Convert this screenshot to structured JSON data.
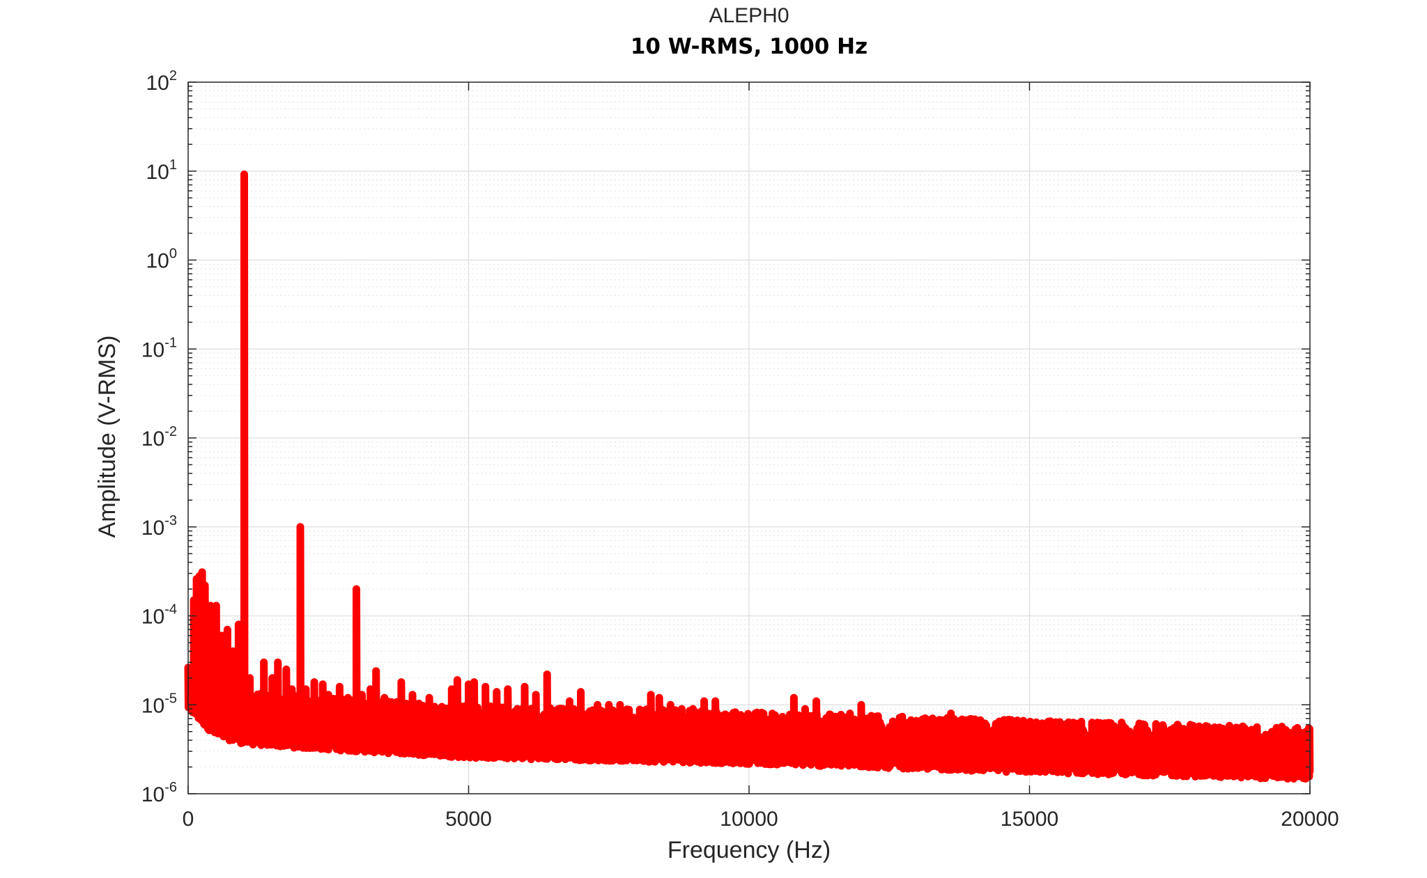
{
  "chart_data": {
    "type": "line",
    "title": "ALEPH0",
    "subtitle": "10 W-RMS, 1000 Hz",
    "xlabel": "Frequency (Hz)",
    "ylabel": "Amplitude (V-RMS)",
    "xlim": [
      0,
      20000
    ],
    "ylim": [
      1e-06,
      100
    ],
    "yscale": "log",
    "grid": true,
    "minor_grid": true,
    "x_ticks": [
      0,
      5000,
      10000,
      15000,
      20000
    ],
    "x_tick_labels": [
      "0",
      "5000",
      "10000",
      "15000",
      "20000"
    ],
    "y_ticks": [
      1e-06,
      1e-05,
      0.0001,
      0.001,
      0.01,
      0.1,
      1,
      10,
      100
    ],
    "y_tick_labels": [
      {
        "base": "10",
        "exp": "-6"
      },
      {
        "base": "10",
        "exp": "-5"
      },
      {
        "base": "10",
        "exp": "-4"
      },
      {
        "base": "10",
        "exp": "-3"
      },
      {
        "base": "10",
        "exp": "-2"
      },
      {
        "base": "10",
        "exp": "-1"
      },
      {
        "base": "10",
        "exp": "0"
      },
      {
        "base": "10",
        "exp": "1"
      },
      {
        "base": "10",
        "exp": "2"
      }
    ],
    "series": [
      {
        "color": "#ff0000",
        "noise_floor": [
          [
            0,
            1.2e-05
          ],
          [
            500,
            6e-06
          ],
          [
            1000,
            5e-06
          ],
          [
            2000,
            4.5e-06
          ],
          [
            5000,
            3.5e-06
          ],
          [
            10000,
            3e-06
          ],
          [
            15000,
            2.4e-06
          ],
          [
            20000,
            2e-06
          ]
        ],
        "peaks": [
          [
            100,
            0.00015
          ],
          [
            150,
            0.00026
          ],
          [
            200,
            0.00028
          ],
          [
            250,
            0.00031
          ],
          [
            300,
            0.00022
          ],
          [
            400,
            0.00013
          ],
          [
            500,
            0.00013
          ],
          [
            600,
            6e-05
          ],
          [
            700,
            7e-05
          ],
          [
            800,
            4e-05
          ],
          [
            900,
            8e-05
          ],
          [
            1000,
            9.2
          ],
          [
            1100,
            2e-05
          ],
          [
            1200,
            1e-05
          ],
          [
            1350,
            3e-05
          ],
          [
            1500,
            2e-05
          ],
          [
            1600,
            3e-05
          ],
          [
            1750,
            2.5e-05
          ],
          [
            1850,
            1.5e-05
          ],
          [
            2000,
            0.001
          ],
          [
            2100,
            1.5e-05
          ],
          [
            2250,
            1.8e-05
          ],
          [
            2400,
            1.7e-05
          ],
          [
            2500,
            1.3e-05
          ],
          [
            2700,
            1.6e-05
          ],
          [
            2850,
            1.2e-05
          ],
          [
            3000,
            0.0002
          ],
          [
            3100,
            1.3e-05
          ],
          [
            3250,
            1.5e-05
          ],
          [
            3350,
            2.4e-05
          ],
          [
            3500,
            1.2e-05
          ],
          [
            3800,
            1.8e-05
          ],
          [
            4000,
            1.3e-05
          ],
          [
            4300,
            1.2e-05
          ],
          [
            4500,
            9e-06
          ],
          [
            4700,
            1.5e-05
          ],
          [
            4800,
            1.9e-05
          ],
          [
            5000,
            1.7e-05
          ],
          [
            5100,
            1.8e-05
          ],
          [
            5300,
            1.6e-05
          ],
          [
            5500,
            1.4e-05
          ],
          [
            5700,
            1.5e-05
          ],
          [
            6000,
            1.6e-05
          ],
          [
            6200,
            1.3e-05
          ],
          [
            6400,
            2.2e-05
          ],
          [
            6600,
            9e-06
          ],
          [
            6800,
            1.1e-05
          ],
          [
            7000,
            1.4e-05
          ],
          [
            7300,
            1e-05
          ],
          [
            7500,
            1e-05
          ],
          [
            7700,
            1e-05
          ],
          [
            8000,
            6e-06
          ],
          [
            8250,
            1.3e-05
          ],
          [
            8400,
            1.2e-05
          ],
          [
            8600,
            1e-05
          ],
          [
            8800,
            9e-06
          ],
          [
            9000,
            9e-06
          ],
          [
            9200,
            1.1e-05
          ],
          [
            9400,
            1.1e-05
          ],
          [
            9700,
            6e-06
          ],
          [
            10000,
            4e-06
          ],
          [
            10300,
            5e-06
          ],
          [
            10600,
            7e-06
          ],
          [
            10800,
            1.2e-05
          ],
          [
            11000,
            9e-06
          ],
          [
            11200,
            1.1e-05
          ],
          [
            11500,
            7e-06
          ],
          [
            11800,
            8e-06
          ],
          [
            12000,
            1e-05
          ],
          [
            12200,
            7e-06
          ],
          [
            12500,
            5e-06
          ],
          [
            12800,
            6e-06
          ],
          [
            13000,
            5e-06
          ],
          [
            13300,
            6e-06
          ],
          [
            13600,
            8e-06
          ],
          [
            13900,
            4e-06
          ],
          [
            14300,
            4e-06
          ],
          [
            14600,
            4e-06
          ],
          [
            15000,
            4e-06
          ],
          [
            15300,
            5e-06
          ],
          [
            15800,
            4e-06
          ],
          [
            16300,
            3e-06
          ],
          [
            16800,
            3e-06
          ],
          [
            17200,
            3e-06
          ],
          [
            17700,
            3e-06
          ],
          [
            18000,
            4e-06
          ],
          [
            18300,
            3e-06
          ],
          [
            18600,
            3e-06
          ],
          [
            19000,
            2.5e-06
          ],
          [
            19400,
            3e-06
          ],
          [
            19700,
            3e-06
          ],
          [
            20000,
            2.5e-06
          ]
        ]
      }
    ]
  }
}
